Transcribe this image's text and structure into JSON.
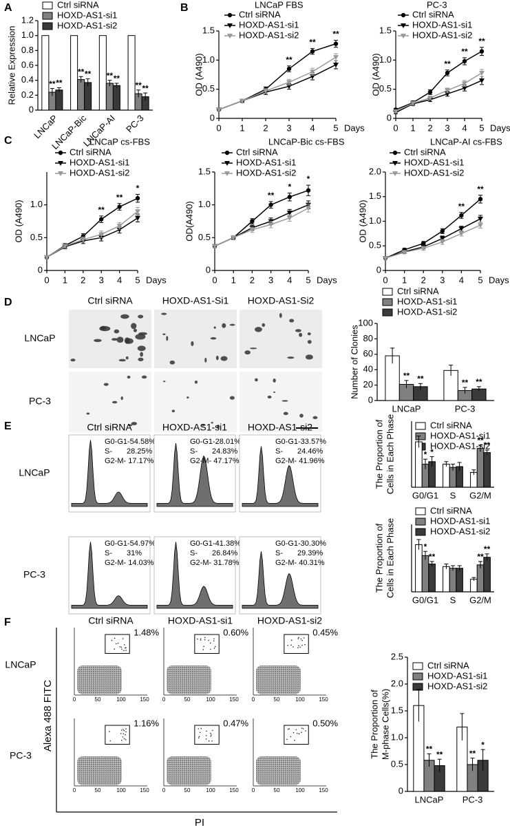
{
  "chart_data": [
    {
      "type": "bar",
      "ylabel": "Relative Expression",
      "categories": [
        "LNCaP",
        "LNCaP-Bic",
        "LNCaP-AI",
        "PC-3"
      ],
      "ylim": [
        0,
        1.2
      ],
      "yticks": [
        0,
        0.2,
        0.4,
        0.6,
        0.8,
        {
          "value": 1,
          "label": "1.0"
        },
        1.2
      ],
      "series": [
        {
          "name": "Ctrl siRNA",
          "color": "#ffffff",
          "values": [
            1,
            1,
            1,
            1
          ]
        },
        {
          "name": "HOXD-AS1-si1",
          "color": "#808080",
          "values": [
            0.24,
            0.41,
            0.36,
            0.22
          ],
          "errors": [
            0.05,
            0.04,
            0.04,
            0.05
          ],
          "significance": [
            "**",
            "**",
            "**",
            "**"
          ]
        },
        {
          "name": "HOXD-AS1-si2",
          "color": "#3a3a3a",
          "values": [
            0.27,
            0.37,
            0.33,
            0.18
          ],
          "errors": [
            0.03,
            0.05,
            0.03,
            0.05
          ],
          "significance": [
            "**",
            "**",
            "**",
            "**"
          ]
        }
      ]
    },
    {
      "type": "line",
      "title": "LNCaP FBS",
      "ylabel": "OD (A490)",
      "xlabel": "Days",
      "x": [
        0,
        1,
        2,
        3,
        4,
        5
      ],
      "xlim": [
        0,
        5
      ],
      "xticks": [
        0,
        1,
        2,
        3,
        4,
        5
      ],
      "ylim": [
        0,
        1.5
      ],
      "yticks": [
        0,
        0.5,
        {
          "value": 1,
          "label": "1.0"
        },
        1.5
      ],
      "series": [
        {
          "name": "Ctrl siRNA",
          "color": "#000000",
          "values": [
            0.15,
            0.3,
            0.5,
            0.85,
            1.15,
            1.28
          ],
          "errors": [
            0.02,
            0.03,
            0.04,
            0.05,
            0.05,
            0.06
          ],
          "significance": [
            null,
            null,
            null,
            "**",
            "**",
            "**"
          ]
        },
        {
          "name": "HOXD-AS1-si1",
          "color": "#000000",
          "values": [
            0.15,
            0.3,
            0.45,
            0.55,
            0.72,
            0.92
          ],
          "errors": [
            0.02,
            0.03,
            0.04,
            0.05,
            0.06,
            0.07
          ]
        },
        {
          "name": "HOXD-AS1-si2",
          "color": "#999999",
          "values": [
            0.15,
            0.3,
            0.47,
            0.62,
            0.8,
            1.05
          ],
          "errors": [
            0.02,
            0.03,
            0.04,
            0.05,
            0.06,
            0.06
          ]
        }
      ]
    },
    {
      "type": "line",
      "title": "PC-3",
      "ylabel": "OD (A490)",
      "xlabel": "Days",
      "x": [
        0,
        1,
        2,
        3,
        4,
        5
      ],
      "xlim": [
        0,
        5
      ],
      "xticks": [
        0,
        1,
        2,
        3,
        4,
        5
      ],
      "ylim": [
        0,
        1.5
      ],
      "yticks": [
        0,
        0.5,
        {
          "value": 1,
          "label": "1.0"
        },
        1.5
      ],
      "series": [
        {
          "name": "Ctrl siRNA",
          "color": "#000000",
          "values": [
            0.15,
            0.27,
            0.45,
            0.78,
            0.98,
            1.15
          ],
          "errors": [
            0.02,
            0.03,
            0.04,
            0.05,
            0.06,
            0.07
          ],
          "significance": [
            null,
            null,
            null,
            "**",
            "**",
            "**"
          ]
        },
        {
          "name": "HOXD-AS1-si1",
          "color": "#000000",
          "values": [
            0.1,
            0.25,
            0.32,
            0.42,
            0.52,
            0.65
          ],
          "errors": [
            0.02,
            0.03,
            0.03,
            0.04,
            0.05,
            0.07
          ]
        },
        {
          "name": "HOXD-AS1-si2",
          "color": "#999999",
          "values": [
            0.12,
            0.26,
            0.35,
            0.48,
            0.6,
            0.78
          ],
          "errors": [
            0.02,
            0.03,
            0.03,
            0.04,
            0.05,
            0.06
          ]
        }
      ]
    },
    {
      "type": "line",
      "title": "LNCaP cs-FBS",
      "ylabel": "OD (A490)",
      "xlabel": "Days",
      "x": [
        0,
        1,
        2,
        3,
        4,
        5
      ],
      "xlim": [
        0,
        5
      ],
      "xticks": [
        0,
        1,
        2,
        3,
        4,
        5
      ],
      "ylim": [
        0,
        1.5
      ],
      "yticks": [
        0,
        0.5,
        {
          "value": 1,
          "label": "1.0"
        }
      ],
      "series": [
        {
          "name": "Ctrl siRNA",
          "color": "#000000",
          "values": [
            0.2,
            0.38,
            0.52,
            0.78,
            0.97,
            1.1
          ],
          "errors": [
            0.02,
            0.03,
            0.04,
            0.05,
            0.05,
            0.06
          ],
          "significance": [
            null,
            null,
            null,
            "**",
            "**",
            "*"
          ]
        },
        {
          "name": "HOXD-AS1-si1",
          "color": "#000000",
          "values": [
            0.2,
            0.36,
            0.45,
            0.5,
            0.62,
            0.8
          ],
          "errors": [
            0.02,
            0.03,
            0.04,
            0.05,
            0.05,
            0.06
          ]
        },
        {
          "name": "HOXD-AS1-si2",
          "color": "#999999",
          "values": [
            0.2,
            0.37,
            0.47,
            0.55,
            0.68,
            0.9
          ],
          "errors": [
            0.02,
            0.03,
            0.04,
            0.05,
            0.05,
            0.06
          ]
        }
      ]
    },
    {
      "type": "line",
      "title": "LNCaP-Bic cs-FBS",
      "ylabel": "OD(A490)",
      "xlabel": "Days",
      "x": [
        0,
        1,
        2,
        3,
        4,
        5
      ],
      "xlim": [
        0,
        5
      ],
      "xticks": [
        0,
        1,
        2,
        3,
        4,
        5
      ],
      "ylim": [
        0,
        1.5
      ],
      "yticks": [
        0,
        0.5,
        {
          "value": 1,
          "label": "1.0"
        },
        1.5
      ],
      "series": [
        {
          "name": "Ctrl siRNA",
          "color": "#000000",
          "values": [
            0.37,
            0.5,
            0.75,
            1.0,
            1.12,
            1.22
          ],
          "errors": [
            0.02,
            0.03,
            0.04,
            0.05,
            0.06,
            0.08
          ],
          "significance": [
            null,
            null,
            null,
            "**",
            "*",
            "*"
          ]
        },
        {
          "name": "HOXD-AS1-si1",
          "color": "#000000",
          "values": [
            0.37,
            0.5,
            0.65,
            0.75,
            0.88,
            1.0
          ],
          "errors": [
            0.02,
            0.03,
            0.04,
            0.05,
            0.05,
            0.06
          ]
        },
        {
          "name": "HOXD-AS1-si2",
          "color": "#999999",
          "values": [
            0.37,
            0.5,
            0.62,
            0.7,
            0.8,
            0.95
          ],
          "errors": [
            0.02,
            0.03,
            0.04,
            0.05,
            0.05,
            0.06
          ]
        }
      ]
    },
    {
      "type": "line",
      "title": "LNCaP-AI cs-FBS",
      "ylabel": "OD (A490)",
      "xlabel": "Days",
      "x": [
        0,
        1,
        2,
        3,
        4,
        5
      ],
      "xlim": [
        0,
        5
      ],
      "xticks": [
        0,
        1,
        2,
        3,
        4,
        5
      ],
      "ylim": [
        0,
        2
      ],
      "yticks": [
        0,
        0.5,
        {
          "value": 1,
          "label": "1.0"
        },
        1.5,
        {
          "value": 2,
          "label": "2.0"
        }
      ],
      "series": [
        {
          "name": "Ctrl siRNA",
          "color": "#000000",
          "values": [
            0.25,
            0.42,
            0.55,
            0.8,
            1.12,
            1.45
          ],
          "errors": [
            0.02,
            0.03,
            0.04,
            0.05,
            0.06,
            0.08
          ],
          "significance": [
            null,
            null,
            null,
            null,
            "**",
            "**"
          ]
        },
        {
          "name": "HOXD-AS1-si1",
          "color": "#000000",
          "values": [
            0.25,
            0.38,
            0.48,
            0.65,
            0.85,
            1.05
          ],
          "errors": [
            0.02,
            0.03,
            0.04,
            0.05,
            0.05,
            0.07
          ]
        },
        {
          "name": "HOXD-AS1-si2",
          "color": "#999999",
          "values": [
            0.25,
            0.37,
            0.45,
            0.58,
            0.75,
            0.92
          ],
          "errors": [
            0.02,
            0.03,
            0.04,
            0.05,
            0.05,
            0.06
          ]
        }
      ]
    },
    {
      "type": "bar",
      "ylabel": "Number of Clonies",
      "categories": [
        "LNCaP",
        "PC-3"
      ],
      "ylim": [
        0,
        100
      ],
      "yticks": [
        0,
        20,
        40,
        60,
        80,
        100
      ],
      "series": [
        {
          "name": "Ctrl siRNA",
          "color": "#ffffff",
          "values": [
            58,
            39
          ],
          "errors": [
            10,
            7
          ]
        },
        {
          "name": "HOXD-AS1-si1",
          "color": "#808080",
          "values": [
            21,
            13
          ],
          "errors": [
            5,
            4
          ],
          "significance": [
            "**",
            "**"
          ]
        },
        {
          "name": "HOXD-AS1-si2",
          "color": "#3a3a3a",
          "values": [
            18,
            15
          ],
          "errors": [
            4,
            3
          ],
          "significance": [
            "**",
            "**"
          ]
        }
      ]
    },
    {
      "type": "bar",
      "ylabel": [
        "The Proportion of",
        "Cells in Each Phase"
      ],
      "categories": [
        "G0/G1",
        "S",
        "G2/M"
      ],
      "ylim": [
        0,
        0.8
      ],
      "series": [
        {
          "name": "Ctrl siRNA",
          "color": "#ffffff",
          "values": [
            0.55,
            0.28,
            0.18
          ],
          "errors": [
            0.07,
            0.03,
            0.03
          ]
        },
        {
          "name": "HOXD-AS1-si1",
          "color": "#808080",
          "values": [
            0.28,
            0.24,
            0.47
          ],
          "errors": [
            0.06,
            0.04,
            0.04
          ],
          "significance": [
            "*",
            null,
            "**"
          ]
        },
        {
          "name": "HOXD-AS1-si2",
          "color": "#3a3a3a",
          "values": [
            0.31,
            0.25,
            0.42
          ],
          "errors": [
            0.06,
            0.05,
            0.03
          ],
          "significance": [
            "*",
            null,
            "**"
          ]
        }
      ]
    },
    {
      "type": "bar",
      "ylabel": [
        "The Proportion of",
        "Cells in Each Phase"
      ],
      "categories": [
        "G0/G1",
        "S",
        "G2/M"
      ],
      "ylim": [
        0,
        0.8
      ],
      "series": [
        {
          "name": "Ctrl siRNA",
          "color": "#ffffff",
          "values": [
            0.56,
            0.3,
            0.15
          ],
          "errors": [
            0.06,
            0.03,
            0.02
          ]
        },
        {
          "name": "HOXD-AS1-si1",
          "color": "#808080",
          "values": [
            0.43,
            0.28,
            0.32
          ],
          "errors": [
            0.05,
            0.03,
            0.04
          ],
          "significance": [
            "*",
            null,
            "**"
          ]
        },
        {
          "name": "HOXD-AS1-si2",
          "color": "#3a3a3a",
          "values": [
            0.33,
            0.28,
            0.41
          ],
          "errors": [
            0.03,
            0.03,
            0.04
          ],
          "significance": [
            "**",
            null,
            "**"
          ]
        }
      ]
    },
    {
      "type": "bar",
      "ylabel": [
        "The Proportion of",
        "M-phase Cells(%)"
      ],
      "categories": [
        "LNCaP",
        "PC-3"
      ],
      "ylim": [
        0,
        2.5
      ],
      "yticks": [
        0,
        0.5,
        {
          "value": 1,
          "label": "1.0"
        },
        1.5,
        {
          "value": 2,
          "label": "2.0"
        },
        2.5
      ],
      "series": [
        {
          "name": "Ctrl siRNA",
          "color": "#ffffff",
          "values": [
            1.6,
            1.2
          ],
          "errors": [
            0.3,
            0.25
          ]
        },
        {
          "name": "HOXD-AS1-si1",
          "color": "#808080",
          "values": [
            0.58,
            0.5
          ],
          "errors": [
            0.12,
            0.12
          ],
          "significance": [
            "**",
            "**"
          ]
        },
        {
          "name": "HOXD-AS1-si2",
          "color": "#3a3a3a",
          "values": [
            0.48,
            0.58
          ],
          "errors": [
            0.12,
            0.2
          ],
          "significance": [
            "**",
            "*"
          ]
        }
      ]
    }
  ],
  "figure": {
    "panel_letters": [
      "A",
      "B",
      "C",
      "D",
      "E",
      "F"
    ],
    "colonies": {
      "columns": [
        "Ctrl siRNA",
        "HOXD-AS1-Si1",
        "HOXD-AS1-Si2"
      ],
      "rows": [
        "LNCaP",
        "PC-3"
      ]
    },
    "cell_cycle": {
      "columns": [
        "Ctrl siRNA",
        "HOXD-AS1-si1",
        "HOXD-AS1-si2"
      ],
      "rows": [
        "LNCaP",
        "PC-3"
      ],
      "cells": [
        [
          {
            "g0g1": "G0-G1-54.58%",
            "s_label": "S-",
            "s": "28.25%",
            "g2m": "G2-M- 17.17%"
          },
          {
            "g0g1": "G0-G1-28.01%",
            "s_label": "S-",
            "s": "24.83%",
            "g2m": "G2-M- 47.17%"
          },
          {
            "g0g1": "G0-G1-33.57%",
            "s_label": "S-",
            "s": "24.46%",
            "g2m": "G2-M- 41.96%"
          }
        ],
        [
          {
            "g0g1": "G0-G1-54.97%",
            "s_label": "S-",
            "s": "31%",
            "g2m": "G2-M- 14.03%"
          },
          {
            "g0g1": "G0-G1-41.38%",
            "s_label": "S-",
            "s": "26.84%",
            "g2m": "G2-M- 31.78%"
          },
          {
            "g0g1": "G0-G1-30.30%",
            "s_label": "S-",
            "s": "29.39%",
            "g2m": "G2-M- 40.31%"
          }
        ]
      ]
    },
    "mitosis": {
      "columns": [
        "Ctrl siRNA",
        "HOXD-AS1-si1",
        "HOXD-AS1-si2"
      ],
      "rows": [
        "LNCaP",
        "PC-3"
      ],
      "percentages": [
        [
          "1.48%",
          "0.60%",
          "0.45%"
        ],
        [
          "1.16%",
          "0.47%",
          "0.50%"
        ]
      ],
      "y_axis": "Alexa 488 FITC",
      "x_axis": "PI",
      "xticks": [
        "0",
        "50",
        "100",
        "150"
      ]
    }
  }
}
